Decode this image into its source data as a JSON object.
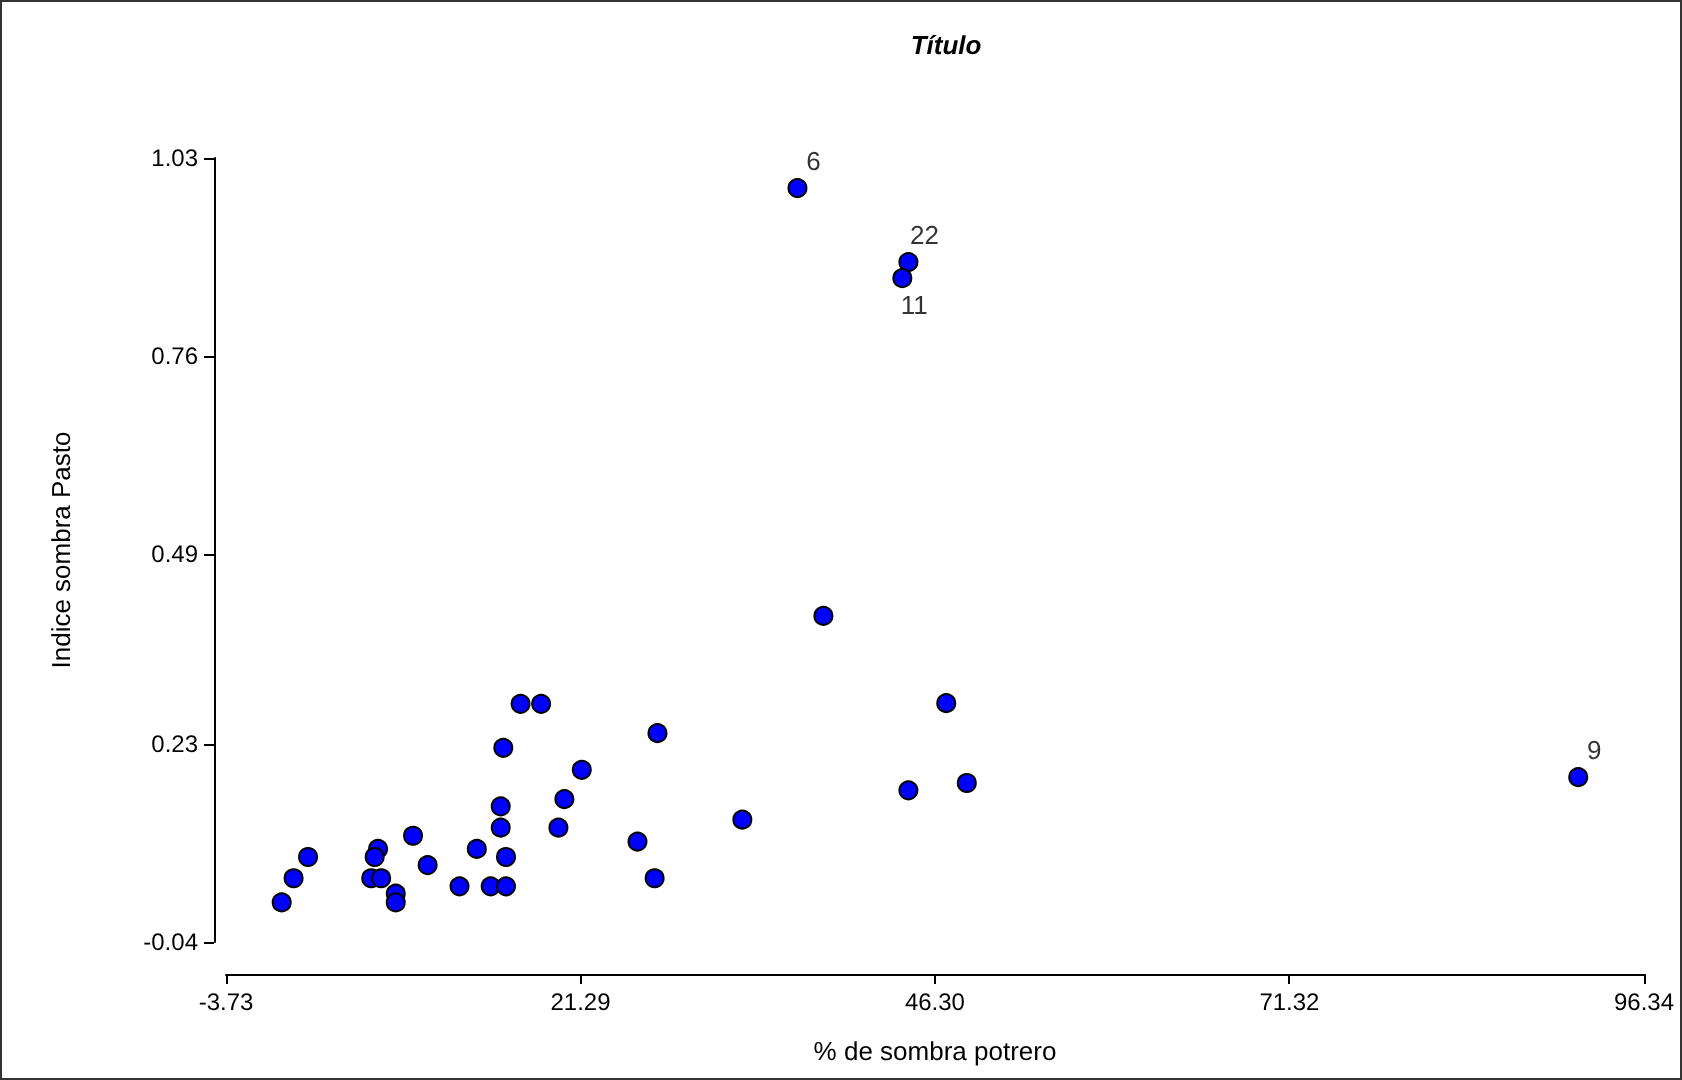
{
  "chart_data": {
    "type": "scatter",
    "title": "Título",
    "xlabel": "% de sombra potrero",
    "ylabel": "Indice sombra Pasto",
    "x": [
      0.2,
      1.04,
      2.06,
      7.0,
      6.76,
      6.52,
      7.22,
      8.25,
      8.25,
      9.47,
      10.5,
      12.75,
      13.97,
      14.95,
      16.03,
      16.03,
      15.66,
      15.66,
      15.84,
      17.06,
      18.51,
      19.73,
      20.15,
      21.38,
      25.31,
      26.52,
      26.72,
      32.71,
      38.43,
      44.43,
      47.1,
      48.55,
      91.7,
      36.6,
      44.43,
      44.0
    ],
    "values": [
      0.014,
      0.047,
      0.076,
      0.087,
      0.076,
      0.047,
      0.047,
      0.026,
      0.014,
      0.105,
      0.065,
      0.036,
      0.087,
      0.036,
      0.036,
      0.076,
      0.116,
      0.145,
      0.225,
      0.285,
      0.285,
      0.116,
      0.155,
      0.195,
      0.097,
      0.047,
      0.245,
      0.127,
      0.405,
      0.167,
      0.286,
      0.177,
      0.185,
      0.989,
      0.888,
      0.866
    ],
    "annotations": [
      {
        "text": "9",
        "x": 91.7,
        "y": 0.185
      },
      {
        "text": "6",
        "x": 36.6,
        "y": 0.989
      },
      {
        "text": "22",
        "x": 44.43,
        "y": 0.888
      },
      {
        "text": "11",
        "x": 44.0,
        "y": 0.866
      }
    ],
    "color": "#0000ff",
    "marker": "circle",
    "grid": false,
    "xlim": [
      -3.73,
      96.34
    ],
    "xticks": [
      -3.73,
      21.29,
      {
        "value": 46.3,
        "label": "46.30"
      },
      71.32,
      96.34
    ],
    "ylim": [
      -0.04,
      1.03
    ],
    "yticks": [
      -0.04,
      0.23,
      0.49,
      0.76,
      1.03
    ]
  }
}
